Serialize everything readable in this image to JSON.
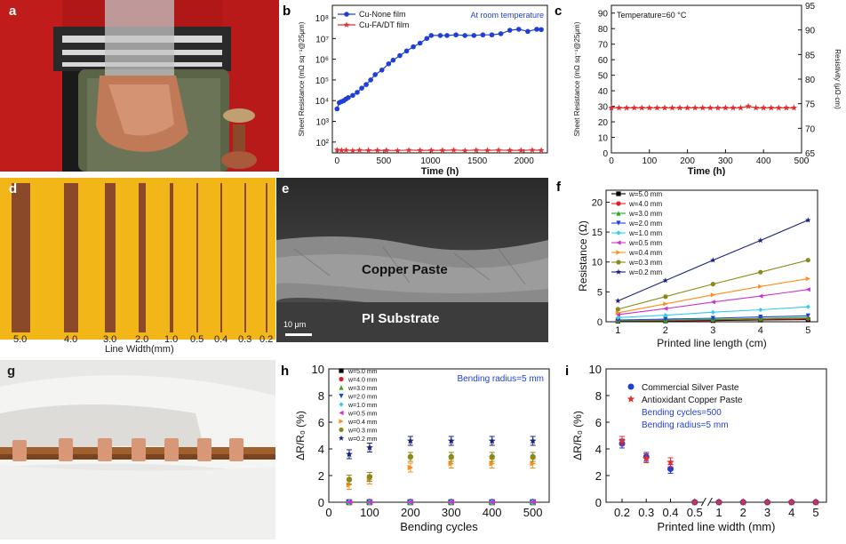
{
  "panel_letters": {
    "a": "a",
    "b": "b",
    "c": "c",
    "d": "d",
    "e": "e",
    "f": "f",
    "g": "g",
    "h": "h",
    "i": "i"
  },
  "panel_d": {
    "tick_labels": [
      "5.0",
      "4.0",
      "3.0",
      "2.0",
      "1.0",
      "0.5",
      "0.4",
      "0.3",
      "0.2"
    ],
    "axis_label": "Line Width(mm)"
  },
  "panel_e": {
    "upper_label": "Copper Paste",
    "lower_label": "PI Substrate",
    "scale_bar": "10 μm"
  },
  "colors": {
    "blue": "#1f3fd6",
    "red": "#e03030",
    "navy": "#1a237e",
    "yellow_bg": "#f2b619",
    "copper": "#8a4a2a"
  },
  "chart_data": [
    {
      "id": "b",
      "type": "line",
      "xlabel": "Time (h)",
      "ylabel": "Sheet Resistance (mΩ sq⁻¹@25μm)",
      "annotation": "At room temperature",
      "yscale": "log",
      "xlim": [
        -50,
        2250
      ],
      "ylim": [
        30,
        400000000
      ],
      "xticks": [
        0,
        500,
        1000,
        1500,
        2000
      ],
      "yticks": [
        100,
        1000,
        10000,
        100000,
        1000000,
        10000000,
        100000000
      ],
      "ytick_labels": [
        "10²",
        "10³",
        "10⁴",
        "10⁵",
        "10⁶",
        "10⁷",
        "10⁸"
      ],
      "legend_position": "top-left",
      "series": [
        {
          "name": "Cu-None film",
          "color": "#1f3fd6",
          "marker": "circle",
          "x": [
            0,
            24,
            48,
            72,
            96,
            120,
            168,
            216,
            264,
            312,
            360,
            408,
            480,
            552,
            600,
            672,
            744,
            816,
            888,
            960,
            1008,
            1104,
            1176,
            1272,
            1368,
            1464,
            1560,
            1656,
            1752,
            1848,
            1944,
            2040,
            2136,
            2184
          ],
          "y": [
            4000,
            8000,
            9000,
            10000,
            12000,
            14000,
            18000,
            25000,
            40000,
            60000,
            100000,
            180000,
            300000,
            600000,
            900000,
            1500000,
            2500000,
            4000000,
            6000000,
            10000000,
            14000000,
            14000000,
            14000000,
            15000000,
            14000000,
            14000000,
            15000000,
            15000000,
            17000000,
            25000000,
            28000000,
            22000000,
            28000000,
            27000000
          ]
        },
        {
          "name": "Cu-FA/DT film",
          "color": "#e03030",
          "marker": "star",
          "x": [
            0,
            48,
            96,
            168,
            240,
            336,
            432,
            528,
            648,
            768,
            888,
            1008,
            1128,
            1248,
            1368,
            1488,
            1608,
            1728,
            1848,
            1968,
            2088,
            2184
          ],
          "y": [
            42,
            40,
            41,
            39,
            41,
            40,
            40,
            40,
            39,
            41,
            40,
            40,
            40,
            41,
            39,
            41,
            40,
            41,
            40,
            40,
            41,
            40
          ]
        }
      ]
    },
    {
      "id": "c",
      "type": "line",
      "xlabel": "Time (h)",
      "ylabel": "Sheet Resistance (mΩ sq⁻¹@25μm)",
      "y2label": "Resistivity (μΩ·cm)",
      "annotation": "Temperature=60 °C",
      "xlim": [
        0,
        500
      ],
      "ylim": [
        0,
        95
      ],
      "y2lim": [
        65,
        95
      ],
      "xticks": [
        0,
        100,
        200,
        300,
        400,
        500
      ],
      "yticks": [
        0,
        10,
        20,
        30,
        40,
        50,
        60,
        70,
        80,
        90
      ],
      "y2ticks": [
        65,
        70,
        75,
        80,
        85,
        90,
        95
      ],
      "series": [
        {
          "name": "",
          "color": "#e03030",
          "marker": "star",
          "x": [
            0,
            20,
            40,
            60,
            80,
            100,
            120,
            140,
            160,
            180,
            200,
            220,
            240,
            260,
            280,
            300,
            320,
            340,
            360,
            380,
            400,
            420,
            440,
            460,
            480
          ],
          "y": [
            29,
            29,
            29,
            29,
            29,
            29,
            29,
            29,
            29,
            29,
            29,
            29,
            29,
            29,
            29,
            29,
            29,
            29,
            30,
            29,
            29,
            29,
            29,
            29,
            29
          ]
        }
      ]
    },
    {
      "id": "f",
      "type": "line",
      "xlabel": "Printed line length (cm)",
      "ylabel": "Resistance (Ω)",
      "xlim": [
        0.75,
        5.2
      ],
      "ylim": [
        0,
        22
      ],
      "xticks": [
        1,
        2,
        3,
        4,
        5
      ],
      "yticks": [
        0,
        5,
        10,
        15,
        20
      ],
      "legend_position": "top-left",
      "x": [
        1,
        2,
        3,
        4,
        5
      ],
      "series": [
        {
          "name": "w=5.0 mm",
          "color": "#000000",
          "marker": "square",
          "values": [
            0.1,
            0.15,
            0.2,
            0.3,
            0.35
          ]
        },
        {
          "name": "w=4.0 mm",
          "color": "#e02020",
          "marker": "circle",
          "values": [
            0.15,
            0.2,
            0.3,
            0.4,
            0.5
          ]
        },
        {
          "name": "w=3.0 mm",
          "color": "#22aa22",
          "marker": "triangle",
          "values": [
            0.2,
            0.3,
            0.4,
            0.55,
            0.7
          ]
        },
        {
          "name": "w=2.0 mm",
          "color": "#1f3fd6",
          "marker": "triangle-down",
          "values": [
            0.3,
            0.45,
            0.6,
            0.8,
            1.0
          ]
        },
        {
          "name": "w=1.0 mm",
          "color": "#33ccee",
          "marker": "diamond",
          "values": [
            0.7,
            1.1,
            1.6,
            2.0,
            2.5
          ]
        },
        {
          "name": "w=0.5 mm",
          "color": "#cc33cc",
          "marker": "triangle-left",
          "values": [
            1.2,
            2.2,
            3.3,
            4.3,
            5.4
          ]
        },
        {
          "name": "w=0.4 mm",
          "color": "#ff8c1a",
          "marker": "triangle-right",
          "values": [
            1.5,
            3.0,
            4.5,
            5.9,
            7.2
          ]
        },
        {
          "name": "w=0.3 mm",
          "color": "#8a8a1a",
          "marker": "circle",
          "values": [
            2.1,
            4.2,
            6.3,
            8.3,
            10.3
          ]
        },
        {
          "name": "w=0.2 mm",
          "color": "#1a237e",
          "marker": "star",
          "values": [
            3.5,
            6.9,
            10.3,
            13.6,
            17.0
          ]
        }
      ]
    },
    {
      "id": "h",
      "type": "scatter",
      "xlabel": "Bending cycles",
      "ylabel": "ΔR/R₀ (%)",
      "annotation": "Bending radius=5 mm",
      "xlim": [
        0,
        540
      ],
      "ylim": [
        0,
        10
      ],
      "xticks": [
        0,
        100,
        200,
        300,
        400,
        500
      ],
      "yticks": [
        0,
        2,
        4,
        6,
        8,
        10
      ],
      "legend_position": "top-left",
      "x": [
        50,
        100,
        200,
        300,
        400,
        500
      ],
      "series": [
        {
          "name": "w=5.0 mm",
          "color": "#000000",
          "marker": "square",
          "values": [
            0,
            0,
            0,
            0,
            0,
            0
          ]
        },
        {
          "name": "w=4.0 mm",
          "color": "#e02020",
          "marker": "circle",
          "values": [
            0,
            0,
            0,
            0,
            0,
            0
          ]
        },
        {
          "name": "w=3.0 mm",
          "color": "#22aa22",
          "marker": "triangle",
          "values": [
            0,
            0,
            0,
            0,
            0,
            0
          ]
        },
        {
          "name": "w=2.0 mm",
          "color": "#1f3fd6",
          "marker": "triangle-down",
          "values": [
            0,
            0,
            0,
            0,
            0,
            0
          ]
        },
        {
          "name": "w=1.0 mm",
          "color": "#33ccee",
          "marker": "diamond",
          "values": [
            0,
            0,
            0,
            0,
            0,
            0
          ]
        },
        {
          "name": "w=0.5 mm",
          "color": "#cc33cc",
          "marker": "triangle-left",
          "values": [
            0,
            0,
            0,
            0,
            0,
            0
          ]
        },
        {
          "name": "w=0.4 mm",
          "color": "#ff8c1a",
          "marker": "triangle-right",
          "values": [
            1.3,
            1.7,
            2.6,
            2.9,
            2.9,
            2.9
          ]
        },
        {
          "name": "w=0.3 mm",
          "color": "#8a8a1a",
          "marker": "circle",
          "values": [
            1.7,
            1.9,
            3.4,
            3.4,
            3.4,
            3.4
          ]
        },
        {
          "name": "w=0.2 mm",
          "color": "#1a237e",
          "marker": "star",
          "values": [
            3.6,
            4.1,
            4.6,
            4.6,
            4.6,
            4.6
          ]
        }
      ]
    },
    {
      "id": "i",
      "type": "scatter",
      "xlabel": "Printed line width (mm)",
      "ylabel": "ΔR/R₀ (%)",
      "annotations": [
        "Bending cycles=500",
        "Bending radius=5 mm"
      ],
      "categories": [
        "0.2",
        "0.3",
        "0.4",
        "0.5",
        "1",
        "2",
        "3",
        "4",
        "5"
      ],
      "ylim": [
        0,
        10
      ],
      "yticks": [
        0,
        2,
        4,
        6,
        8,
        10
      ],
      "legend_position": "top-right",
      "axis_break": true,
      "series": [
        {
          "name": "Commercial Silver Paste",
          "color": "#1f3fd6",
          "marker": "circle",
          "values": [
            4.4,
            3.4,
            2.5,
            0,
            0,
            0,
            0,
            0,
            0
          ]
        },
        {
          "name": "Antioxidant Copper Paste",
          "color": "#e03030",
          "marker": "star",
          "values": [
            4.6,
            3.3,
            3.0,
            0,
            0,
            0,
            0,
            0,
            0
          ]
        }
      ]
    }
  ]
}
